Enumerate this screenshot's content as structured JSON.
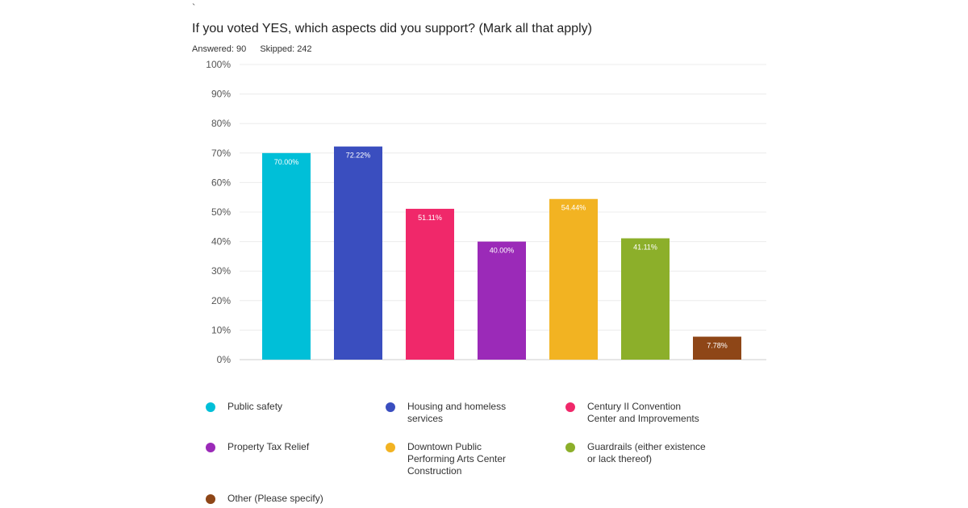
{
  "header": {
    "mark": "`",
    "title": "If you voted YES, which aspects did you support? (Mark all that apply)",
    "answered": "Answered: 90",
    "skipped": "Skipped: 242"
  },
  "chart_data": {
    "type": "bar",
    "categories": [
      "Public safety",
      "Housing and homeless services",
      "Century II Convention Center and Improvements",
      "Property Tax Relief",
      "Downtown Public Performing Arts Center Construction",
      "Guardrails (either existence or lack thereof)",
      "Other (Please specify)"
    ],
    "legend_labels": [
      "Public safety",
      "Housing and homeless\nservices",
      "Century II Convention\nCenter and Improvements",
      "Property Tax Relief",
      "Downtown Public\nPerforming Arts Center\nConstruction",
      "Guardrails (either existence\nor lack thereof)",
      "Other (Please specify)"
    ],
    "values": [
      70.0,
      72.22,
      51.11,
      40.0,
      54.44,
      41.11,
      7.78
    ],
    "value_labels": [
      "70.00%",
      "72.22%",
      "51.11%",
      "40.00%",
      "54.44%",
      "41.11%",
      "7.78%"
    ],
    "colors": [
      "#00bfd8",
      "#3a4ebf",
      "#f0286a",
      "#9b2ab8",
      "#f2b322",
      "#8caf2a",
      "#8e4617"
    ],
    "ylim": [
      0,
      100
    ],
    "yticks": [
      "0%",
      "10%",
      "20%",
      "30%",
      "40%",
      "50%",
      "60%",
      "70%",
      "80%",
      "90%",
      "100%"
    ],
    "grid": true,
    "legend_position": "bottom"
  }
}
